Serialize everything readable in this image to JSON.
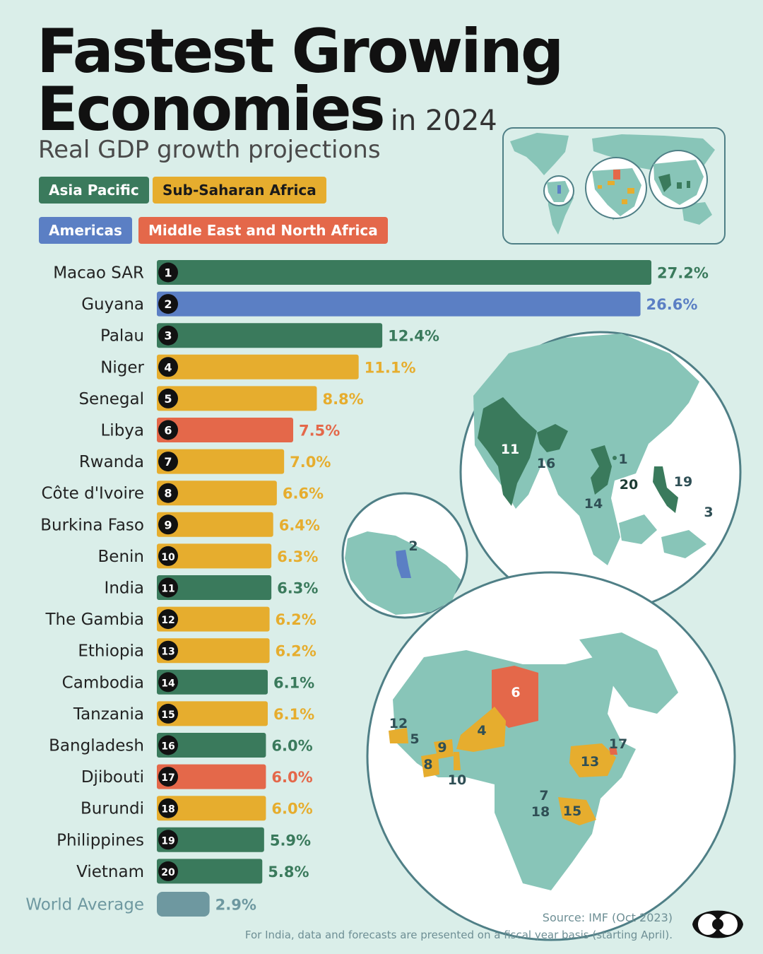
{
  "title_line1": "Fastest Growing",
  "title_line2": "Economies",
  "title_suffix": "in 2024",
  "subtitle": "Real GDP growth projections",
  "legend": [
    {
      "label": "Asia Pacific",
      "color": "#3a7a5c",
      "text_color": "#ffffff"
    },
    {
      "label": "Sub-Saharan Africa",
      "color": "#e6ad2e",
      "text_color": "#1a1a1a"
    },
    {
      "label": "Americas",
      "color": "#5b7fc4",
      "text_color": "#ffffff"
    },
    {
      "label": "Middle East and North Africa",
      "color": "#e4684a",
      "text_color": "#ffffff"
    }
  ],
  "colors": {
    "Asia Pacific": "#3a7a5c",
    "Americas": "#5b7fc4",
    "Sub-Saharan Africa": "#e6ad2e",
    "Middle East and North Africa": "#e4684a",
    "World": "#6e98a0",
    "land": "#88c5b8"
  },
  "chart_data": {
    "type": "bar",
    "orientation": "horizontal",
    "xlim": [
      0,
      27.2
    ],
    "grid": false,
    "value_suffix": "%",
    "categories": [
      "Macao SAR",
      "Guyana",
      "Palau",
      "Niger",
      "Senegal",
      "Libya",
      "Rwanda",
      "Côte d'Ivoire",
      "Burkina Faso",
      "Benin",
      "India",
      "The Gambia",
      "Ethiopia",
      "Cambodia",
      "Tanzania",
      "Bangladesh",
      "Djibouti",
      "Burundi",
      "Philippines",
      "Vietnam"
    ],
    "ranks": [
      "1",
      "2",
      "3",
      "4",
      "5",
      "6",
      "7",
      "8",
      "9",
      "10",
      "11",
      "12",
      "13",
      "14",
      "15",
      "16",
      "17",
      "18",
      "19",
      "20"
    ],
    "values": [
      27.2,
      26.6,
      12.4,
      11.1,
      8.8,
      7.5,
      7.0,
      6.6,
      6.4,
      6.3,
      6.3,
      6.2,
      6.2,
      6.1,
      6.1,
      6.0,
      6.0,
      6.0,
      5.9,
      5.8
    ],
    "value_labels": [
      "27.2%",
      "26.6%",
      "12.4%",
      "11.1%",
      "8.8%",
      "7.5%",
      "7.0%",
      "6.6%",
      "6.4%",
      "6.3%",
      "6.3%",
      "6.2%",
      "6.2%",
      "6.1%",
      "6.1%",
      "6.0%",
      "6.0%",
      "6.0%",
      "5.9%",
      "5.8%"
    ],
    "regions": [
      "Asia Pacific",
      "Americas",
      "Asia Pacific",
      "Sub-Saharan Africa",
      "Sub-Saharan Africa",
      "Middle East and North Africa",
      "Sub-Saharan Africa",
      "Sub-Saharan Africa",
      "Sub-Saharan Africa",
      "Sub-Saharan Africa",
      "Asia Pacific",
      "Sub-Saharan Africa",
      "Sub-Saharan Africa",
      "Asia Pacific",
      "Sub-Saharan Africa",
      "Asia Pacific",
      "Middle East and North Africa",
      "Sub-Saharan Africa",
      "Asia Pacific",
      "Asia Pacific"
    ],
    "reference": {
      "label": "World Average",
      "value": 2.9,
      "value_label": "2.9%"
    }
  },
  "map_labels": {
    "asia": [
      "11",
      "16",
      "1",
      "20",
      "19",
      "14",
      "3"
    ],
    "americas": [
      "2"
    ],
    "africa": [
      "6",
      "12",
      "5",
      "4",
      "9",
      "8",
      "10",
      "13",
      "17",
      "7",
      "18",
      "15"
    ]
  },
  "source": "Source: IMF (Oct 2023)",
  "footnote": "For India, data and forecasts are presented on a fiscal year basis (starting April)."
}
